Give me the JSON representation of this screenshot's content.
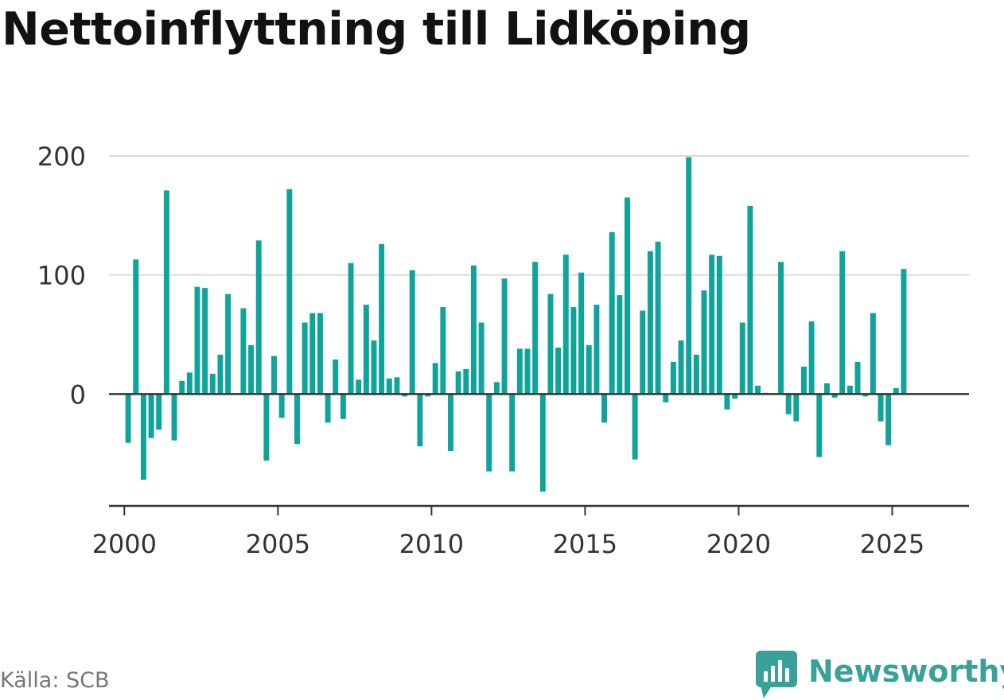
{
  "title": "Nettoinflyttning till Lidköping",
  "source": "Källa: SCB",
  "brand": {
    "name": "Newsworthy",
    "color": "#3aa09a",
    "icon": "newsworthy-chart-bubble-icon"
  },
  "colors": {
    "bar": "#0ea49a",
    "grid": "#d9d9d9",
    "axis": "#333333",
    "text": "#333333"
  },
  "chart_data": {
    "type": "bar",
    "title": "Nettoinflyttning till Lidköping",
    "xlabel": "",
    "ylabel": "",
    "frequency": "quarterly",
    "x_start": "2000 Q1",
    "xlim": [
      1999.5,
      2027.5
    ],
    "ylim": [
      -94,
      200
    ],
    "yticks": [
      0,
      100,
      200
    ],
    "xticks": [
      2000,
      2005,
      2010,
      2015,
      2020,
      2025
    ],
    "grid": true,
    "categories": [
      "2000 Q1",
      "2000 Q2",
      "2000 Q3",
      "2000 Q4",
      "2001 Q1",
      "2001 Q2",
      "2001 Q3",
      "2001 Q4",
      "2002 Q1",
      "2002 Q2",
      "2002 Q3",
      "2002 Q4",
      "2003 Q1",
      "2003 Q2",
      "2003 Q3",
      "2003 Q4",
      "2004 Q1",
      "2004 Q2",
      "2004 Q3",
      "2004 Q4",
      "2005 Q1",
      "2005 Q2",
      "2005 Q3",
      "2005 Q4",
      "2006 Q1",
      "2006 Q2",
      "2006 Q3",
      "2006 Q4",
      "2007 Q1",
      "2007 Q2",
      "2007 Q3",
      "2007 Q4",
      "2008 Q1",
      "2008 Q2",
      "2008 Q3",
      "2008 Q4",
      "2009 Q1",
      "2009 Q2",
      "2009 Q3",
      "2009 Q4",
      "2010 Q1",
      "2010 Q2",
      "2010 Q3",
      "2010 Q4",
      "2011 Q1",
      "2011 Q2",
      "2011 Q3",
      "2011 Q4",
      "2012 Q1",
      "2012 Q2",
      "2012 Q3",
      "2012 Q4",
      "2013 Q1",
      "2013 Q2",
      "2013 Q3",
      "2013 Q4",
      "2014 Q1",
      "2014 Q2",
      "2014 Q3",
      "2014 Q4",
      "2015 Q1",
      "2015 Q2",
      "2015 Q3",
      "2015 Q4",
      "2016 Q1",
      "2016 Q2",
      "2016 Q3",
      "2016 Q4",
      "2017 Q1",
      "2017 Q2",
      "2017 Q3",
      "2017 Q4",
      "2018 Q1",
      "2018 Q2",
      "2018 Q3",
      "2018 Q4",
      "2019 Q1",
      "2019 Q2",
      "2019 Q3",
      "2019 Q4",
      "2020 Q1",
      "2020 Q2",
      "2020 Q3",
      "2020 Q4",
      "2021 Q1",
      "2021 Q2",
      "2021 Q3",
      "2021 Q4",
      "2022 Q1",
      "2022 Q2",
      "2022 Q3",
      "2022 Q4",
      "2023 Q1",
      "2023 Q2",
      "2023 Q3",
      "2023 Q4",
      "2024 Q1",
      "2024 Q2",
      "2024 Q3",
      "2024 Q4",
      "2025 Q1",
      "2025 Q2"
    ],
    "values": [
      -41,
      113,
      -72,
      -37,
      -30,
      171,
      -39,
      11,
      18,
      90,
      89,
      17,
      33,
      84,
      0,
      72,
      41,
      129,
      -56,
      32,
      -20,
      172,
      -42,
      60,
      68,
      68,
      -24,
      29,
      -21,
      110,
      12,
      75,
      45,
      126,
      13,
      14,
      -2,
      104,
      -44,
      -2,
      26,
      73,
      -48,
      19,
      21,
      108,
      60,
      -65,
      10,
      97,
      -65,
      38,
      38,
      111,
      -82,
      84,
      39,
      117,
      73,
      102,
      41,
      75,
      -24,
      136,
      83,
      165,
      -55,
      70,
      120,
      128,
      -7,
      27,
      45,
      199,
      33,
      87,
      117,
      116,
      -13,
      -4,
      60,
      158,
      7,
      1,
      0,
      111,
      -17,
      -23,
      23,
      61,
      -53,
      9,
      -3,
      120,
      7,
      27,
      -2,
      68,
      -23,
      -43,
      5,
      105
    ]
  }
}
